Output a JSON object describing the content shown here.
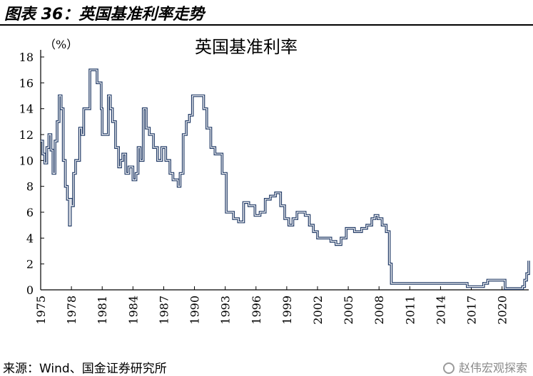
{
  "figure_label": "图表 36：英国基准利率走势",
  "source_note": "来源：Wind、国金证券研究所",
  "watermark_text": "赵伟宏观探索",
  "colors": {
    "line_outer": "#1f3864",
    "line_inner": "#ffffff",
    "axis": "#000000"
  },
  "chart_data": {
    "type": "line",
    "title": "英国基准利率",
    "unit_label": "（%）",
    "xlabel": "",
    "ylabel": "",
    "xlim": [
      1975,
      2022.6
    ],
    "ylim": [
      0,
      18
    ],
    "y_ticks": [
      0,
      2,
      4,
      6,
      8,
      10,
      12,
      14,
      16,
      18
    ],
    "x_ticks": [
      "1975",
      "1978",
      "1981",
      "1984",
      "1987",
      "1990",
      "1993",
      "1996",
      "1999",
      "2002",
      "2005",
      "2008",
      "2011",
      "2014",
      "2017",
      "2020"
    ],
    "grid": false,
    "legend": "none",
    "series": [
      {
        "x": [
          1975.0,
          1975.2,
          1975.4,
          1975.6,
          1975.8,
          1976.0,
          1976.2,
          1976.4,
          1976.6,
          1976.8,
          1977.0,
          1977.2,
          1977.4,
          1977.6,
          1977.8,
          1977.9,
          1978.0,
          1978.2,
          1978.4,
          1978.6,
          1978.8,
          1979.0,
          1979.2,
          1979.5,
          1979.8,
          1980.0,
          1980.5,
          1980.9,
          1981.0,
          1981.3,
          1981.6,
          1981.8,
          1982.0,
          1982.3,
          1982.6,
          1982.8,
          1983.0,
          1983.3,
          1983.6,
          1984.0,
          1984.3,
          1984.5,
          1984.7,
          1985.0,
          1985.3,
          1985.6,
          1986.0,
          1986.4,
          1986.8,
          1987.2,
          1987.6,
          1987.9,
          1988.2,
          1988.4,
          1988.6,
          1988.9,
          1989.2,
          1989.5,
          1989.8,
          1990.5,
          1990.9,
          1991.2,
          1991.6,
          1992.0,
          1992.7,
          1993.1,
          1993.8,
          1994.3,
          1994.8,
          1995.3,
          1995.9,
          1996.4,
          1996.9,
          1997.4,
          1997.9,
          1998.4,
          1998.8,
          1999.2,
          1999.6,
          2000.0,
          2000.8,
          2001.2,
          2001.6,
          2002.0,
          2002.8,
          2003.3,
          2003.8,
          2004.3,
          2004.8,
          2005.6,
          2006.3,
          2006.8,
          2007.3,
          2007.6,
          2007.9,
          2008.3,
          2008.7,
          2009.0,
          2009.2,
          2010.0,
          2012.0,
          2014.0,
          2016.0,
          2016.6,
          2017.5,
          2018.2,
          2018.6,
          2019.5,
          2020.1,
          2020.3,
          2021.0,
          2021.9,
          2022.0,
          2022.2,
          2022.4,
          2022.6
        ],
        "values": [
          11.5,
          10.5,
          9.8,
          11.0,
          12.0,
          10.8,
          9.0,
          11.5,
          13.0,
          15.0,
          14.0,
          10.0,
          8.0,
          7.0,
          5.0,
          7.0,
          6.5,
          9.0,
          10.0,
          10.0,
          12.5,
          12.0,
          14.0,
          14.0,
          17.0,
          17.0,
          16.0,
          14.0,
          12.0,
          12.0,
          15.0,
          14.0,
          13.0,
          11.0,
          9.5,
          10.0,
          10.5,
          9.0,
          9.5,
          8.5,
          9.0,
          11.0,
          10.0,
          14.0,
          12.5,
          12.0,
          11.0,
          10.0,
          11.0,
          10.0,
          9.0,
          8.5,
          8.5,
          8.0,
          9.0,
          12.0,
          13.0,
          13.5,
          15.0,
          15.0,
          14.0,
          12.5,
          11.0,
          10.5,
          9.0,
          6.0,
          5.5,
          5.25,
          6.75,
          6.5,
          5.75,
          6.0,
          7.0,
          7.25,
          7.5,
          6.5,
          5.5,
          5.0,
          5.5,
          6.0,
          5.75,
          5.0,
          4.5,
          4.0,
          4.0,
          3.75,
          3.5,
          4.0,
          4.75,
          4.5,
          4.75,
          5.0,
          5.5,
          5.75,
          5.5,
          5.0,
          4.5,
          2.0,
          0.5,
          0.5,
          0.5,
          0.5,
          0.5,
          0.25,
          0.25,
          0.5,
          0.75,
          0.75,
          0.75,
          0.1,
          0.1,
          0.1,
          0.25,
          0.75,
          1.25,
          2.25
        ]
      }
    ]
  }
}
